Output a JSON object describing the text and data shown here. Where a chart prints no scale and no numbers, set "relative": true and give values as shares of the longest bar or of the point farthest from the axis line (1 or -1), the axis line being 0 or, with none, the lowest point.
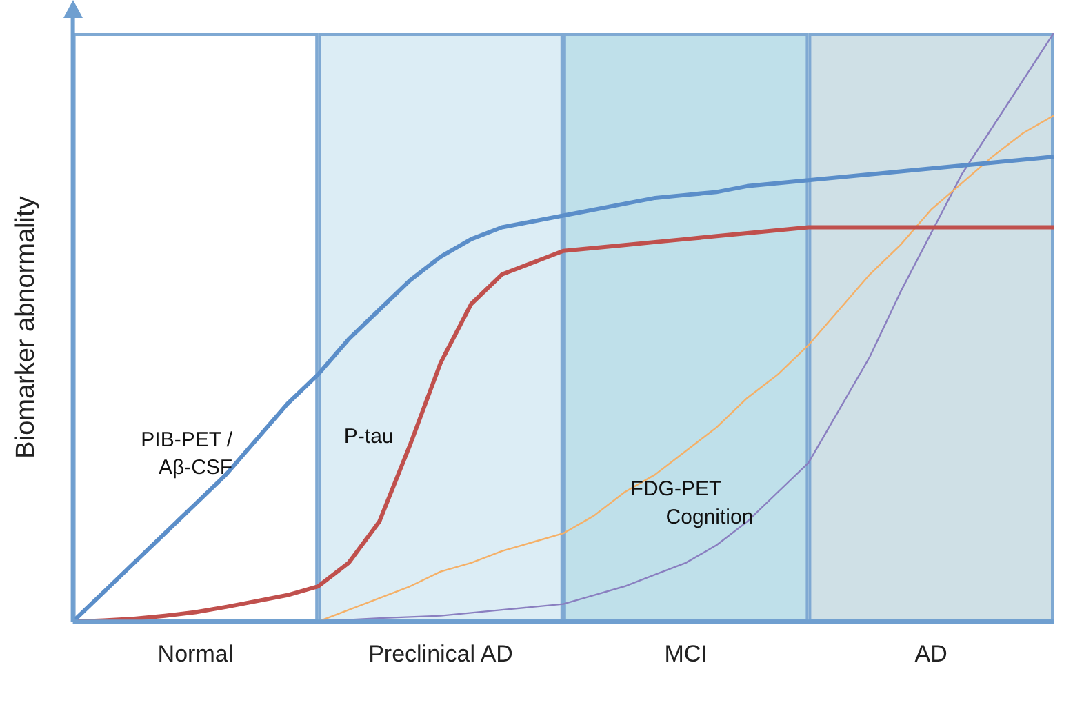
{
  "chart_data": {
    "type": "line",
    "relative": true,
    "ylabel": "Biomarker abnormality",
    "grid": false,
    "legend": false,
    "marker": "none",
    "line_style": "solid",
    "categories": [
      null,
      null,
      null,
      null,
      "Normal",
      null,
      null,
      null,
      null,
      null,
      null,
      null,
      "Preclinical AD",
      null,
      null,
      null,
      null,
      null,
      null,
      null,
      "MCI",
      null,
      null,
      null,
      null,
      null,
      null,
      null,
      "AD",
      null,
      null,
      null,
      null
    ],
    "series": [
      {
        "name": "PIB-PET / Aβ-CSF",
        "color": "#5b8ec9",
        "values": [
          0,
          0.05,
          0.1,
          0.15,
          0.2,
          0.25,
          0.31,
          0.37,
          0.42,
          0.48,
          0.53,
          0.58,
          0.62,
          0.65,
          0.67,
          0.68,
          0.69,
          0.7,
          0.71,
          0.72,
          0.725,
          0.73,
          0.74,
          0.745,
          0.75,
          0.755,
          0.76,
          0.765,
          0.77,
          0.775,
          0.78,
          0.785,
          0.79
        ]
      },
      {
        "name": "P-tau",
        "color": "#c0504d",
        "values": [
          0,
          0.002,
          0.005,
          0.01,
          0.016,
          0.025,
          0.035,
          0.045,
          0.06,
          0.1,
          0.17,
          0.3,
          0.44,
          0.54,
          0.59,
          0.61,
          0.63,
          0.635,
          0.64,
          0.645,
          0.65,
          0.655,
          0.66,
          0.665,
          0.67,
          0.67,
          0.67,
          0.67,
          0.67,
          0.67,
          0.67,
          0.67,
          0.67
        ]
      },
      {
        "name": "FDG-PET",
        "color": "#f5b067",
        "values": [
          null,
          null,
          null,
          null,
          null,
          null,
          null,
          null,
          0,
          0.02,
          0.04,
          0.06,
          0.085,
          0.1,
          0.12,
          0.135,
          0.15,
          0.18,
          0.22,
          0.25,
          0.29,
          0.33,
          0.38,
          0.42,
          0.47,
          0.53,
          0.59,
          0.64,
          0.7,
          0.745,
          0.79,
          0.83,
          0.86
        ]
      },
      {
        "name": "Cognition",
        "color": "#8a7fc0",
        "values": [
          null,
          null,
          null,
          null,
          null,
          null,
          null,
          null,
          0,
          0.003,
          0.006,
          0.008,
          0.01,
          0.015,
          0.02,
          0.025,
          0.03,
          0.045,
          0.06,
          0.08,
          0.1,
          0.13,
          0.17,
          0.22,
          0.27,
          0.36,
          0.45,
          0.56,
          0.66,
          0.76,
          0.84,
          0.92,
          1
        ]
      }
    ]
  }
}
